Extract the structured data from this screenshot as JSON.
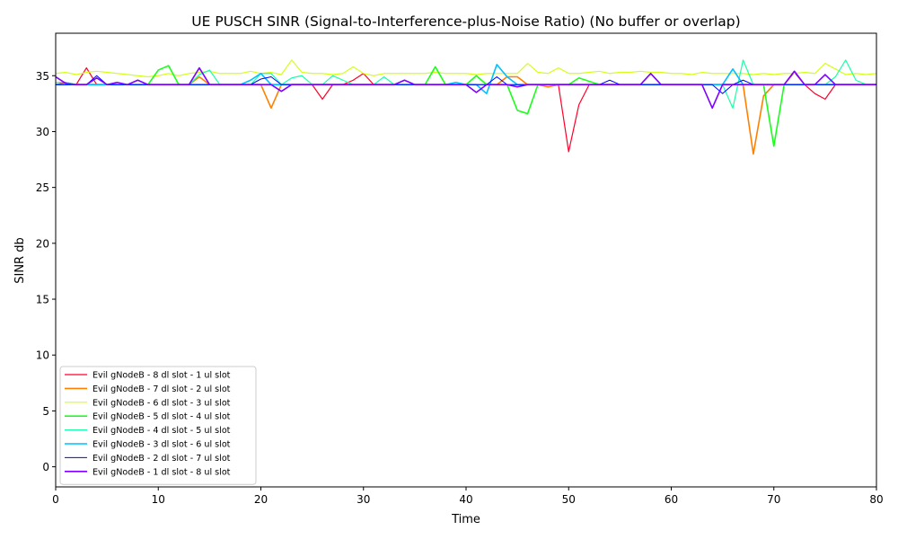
{
  "chart_data": {
    "type": "line",
    "title": "UE PUSCH SINR (Signal-to-Interference-plus-Noise Ratio) (No buffer or overlap)",
    "xlabel": "Time",
    "ylabel": "SINR db",
    "xlim": [
      0,
      80
    ],
    "ylim": [
      -1.8,
      38.8
    ],
    "xticks": [
      0,
      10,
      20,
      30,
      40,
      50,
      60,
      70,
      80
    ],
    "yticks": [
      0,
      5,
      10,
      15,
      20,
      25,
      30,
      35
    ],
    "grid": false,
    "legend_position": "lower-left",
    "x": [
      0,
      1,
      2,
      3,
      4,
      5,
      6,
      7,
      8,
      9,
      10,
      11,
      12,
      13,
      14,
      15,
      16,
      17,
      18,
      19,
      20,
      21,
      22,
      23,
      24,
      25,
      26,
      27,
      28,
      29,
      30,
      31,
      32,
      33,
      34,
      35,
      36,
      37,
      38,
      39,
      40,
      41,
      42,
      43,
      44,
      45,
      46,
      47,
      48,
      49,
      50,
      51,
      52,
      53,
      54,
      55,
      56,
      57,
      58,
      59,
      60,
      61,
      62,
      63,
      64,
      65,
      66,
      67,
      68,
      69,
      70,
      71,
      72,
      73,
      74,
      75,
      76,
      77,
      78,
      79,
      80
    ],
    "series": [
      {
        "name": "Evil gNodeB - 8 dl slot - 1 ul slot",
        "color": "#ff0029",
        "width": 1.2,
        "values": [
          34.2,
          34.4,
          34.2,
          35.7,
          34.2,
          34.2,
          34.2,
          34.2,
          34.2,
          34.2,
          34.2,
          34.2,
          34.2,
          34.2,
          34.2,
          34.2,
          34.2,
          34.2,
          34.2,
          34.2,
          34.2,
          34.2,
          34.2,
          34.2,
          34.2,
          34.2,
          32.9,
          34.2,
          34.2,
          34.6,
          35.2,
          34.2,
          34.2,
          34.2,
          34.2,
          34.2,
          34.2,
          34.2,
          34.2,
          34.2,
          34.2,
          34.2,
          34.2,
          34.2,
          34.2,
          34.2,
          34.2,
          34.2,
          34.2,
          34.2,
          28.2,
          32.4,
          34.2,
          34.2,
          34.2,
          34.2,
          34.2,
          34.2,
          34.2,
          34.2,
          34.2,
          34.2,
          34.2,
          34.2,
          34.2,
          34.2,
          34.2,
          34.2,
          34.2,
          34.2,
          34.2,
          34.2,
          35.3,
          34.2,
          33.4,
          32.9,
          34.2,
          34.2,
          34.2,
          34.2,
          34.2
        ]
      },
      {
        "name": "Evil gNodeB - 7 dl slot - 2 ul slot",
        "color": "#ff8000",
        "width": 1.6,
        "values": [
          34.2,
          34.2,
          34.2,
          34.2,
          34.2,
          34.2,
          34.2,
          34.2,
          34.2,
          34.2,
          34.2,
          34.2,
          34.2,
          34.2,
          34.9,
          34.2,
          34.2,
          34.2,
          34.2,
          34.2,
          34.2,
          32.1,
          34.2,
          34.2,
          34.2,
          34.2,
          34.2,
          34.2,
          34.2,
          34.2,
          34.2,
          34.2,
          34.2,
          34.2,
          34.2,
          34.2,
          34.2,
          34.2,
          34.2,
          34.2,
          34.2,
          34.2,
          34.2,
          34.2,
          34.9,
          34.9,
          34.2,
          34.2,
          34.0,
          34.2,
          34.2,
          34.2,
          34.2,
          34.2,
          34.2,
          34.2,
          34.2,
          34.2,
          34.2,
          34.2,
          34.2,
          34.2,
          34.2,
          34.2,
          34.2,
          34.2,
          34.2,
          34.2,
          28.0,
          33.2,
          34.2,
          34.2,
          34.2,
          34.2,
          34.2,
          34.2,
          34.2,
          34.2,
          34.2,
          34.2,
          34.2
        ]
      },
      {
        "name": "Evil gNodeB - 6 dl slot - 3 ul slot",
        "color": "#d4ff1a",
        "width": 1.2,
        "values": [
          35.2,
          35.3,
          35.1,
          35.3,
          35.4,
          35.3,
          35.2,
          35.1,
          35.0,
          34.9,
          35.0,
          35.2,
          35.0,
          35.2,
          35.3,
          35.4,
          35.2,
          35.2,
          35.2,
          35.4,
          35.2,
          35.3,
          35.1,
          36.4,
          35.3,
          35.2,
          35.2,
          35.1,
          35.2,
          35.8,
          35.2,
          35.0,
          35.2,
          35.2,
          35.2,
          35.2,
          35.2,
          35.3,
          35.2,
          35.2,
          35.2,
          35.1,
          35.2,
          35.2,
          35.2,
          35.2,
          36.1,
          35.3,
          35.2,
          35.7,
          35.2,
          35.2,
          35.3,
          35.4,
          35.2,
          35.3,
          35.3,
          35.4,
          35.3,
          35.3,
          35.2,
          35.2,
          35.1,
          35.3,
          35.2,
          35.2,
          35.2,
          35.2,
          35.1,
          35.2,
          35.1,
          35.2,
          35.2,
          35.3,
          35.2,
          36.1,
          35.6,
          35.1,
          35.2,
          35.1,
          35.2
        ]
      },
      {
        "name": "Evil gNodeB - 5 dl slot - 4 ul slot",
        "color": "#1aff1a",
        "width": 1.6,
        "values": [
          34.2,
          34.2,
          34.2,
          34.2,
          34.2,
          34.2,
          34.2,
          34.2,
          34.2,
          34.2,
          35.5,
          35.9,
          34.2,
          34.2,
          34.2,
          34.2,
          34.2,
          34.2,
          34.2,
          34.2,
          34.2,
          34.2,
          34.2,
          34.2,
          34.2,
          34.2,
          34.2,
          34.2,
          34.2,
          34.2,
          34.2,
          34.2,
          34.2,
          34.2,
          34.2,
          34.2,
          34.2,
          35.8,
          34.2,
          34.2,
          34.2,
          35.0,
          34.2,
          34.2,
          34.2,
          31.9,
          31.6,
          34.2,
          34.2,
          34.2,
          34.2,
          34.8,
          34.5,
          34.2,
          34.2,
          34.2,
          34.2,
          34.2,
          34.2,
          34.2,
          34.2,
          34.2,
          34.2,
          34.2,
          34.2,
          34.2,
          34.2,
          34.2,
          34.2,
          34.2,
          28.7,
          34.2,
          34.2,
          34.2,
          34.2,
          34.2,
          34.2,
          34.2,
          34.2,
          34.2,
          34.2
        ]
      },
      {
        "name": "Evil gNodeB - 4 dl slot - 5 ul slot",
        "color": "#1affa6",
        "width": 1.2,
        "values": [
          34.4,
          34.4,
          34.2,
          34.2,
          34.8,
          34.2,
          34.2,
          34.2,
          34.2,
          34.2,
          34.2,
          34.2,
          34.2,
          34.2,
          35.1,
          35.5,
          34.2,
          34.2,
          34.2,
          34.2,
          35.2,
          35.2,
          34.2,
          34.8,
          35.0,
          34.2,
          34.2,
          35.0,
          34.6,
          34.2,
          34.2,
          34.2,
          34.9,
          34.2,
          34.2,
          34.2,
          34.2,
          34.2,
          34.2,
          34.2,
          34.2,
          34.2,
          34.2,
          34.2,
          34.2,
          34.2,
          34.2,
          34.2,
          34.2,
          34.2,
          34.2,
          34.2,
          34.2,
          34.2,
          34.2,
          34.2,
          34.2,
          34.2,
          34.2,
          34.2,
          34.2,
          34.2,
          34.2,
          34.2,
          34.2,
          34.2,
          32.1,
          36.4,
          34.2,
          34.2,
          34.2,
          34.2,
          34.2,
          34.2,
          34.2,
          34.2,
          34.9,
          36.4,
          34.6,
          34.2,
          34.2
        ]
      },
      {
        "name": "Evil gNodeB - 3 dl slot - 6 ul slot",
        "color": "#00bfff",
        "width": 1.6,
        "values": [
          34.2,
          34.2,
          34.2,
          34.2,
          34.2,
          34.2,
          34.2,
          34.2,
          34.2,
          34.2,
          34.2,
          34.2,
          34.2,
          34.2,
          34.2,
          34.2,
          34.2,
          34.2,
          34.2,
          34.6,
          35.2,
          34.2,
          34.2,
          34.2,
          34.2,
          34.2,
          34.2,
          34.2,
          34.2,
          34.2,
          34.2,
          34.2,
          34.2,
          34.2,
          34.2,
          34.2,
          34.2,
          34.2,
          34.2,
          34.4,
          34.2,
          34.2,
          33.4,
          36.0,
          34.9,
          34.2,
          34.2,
          34.2,
          34.2,
          34.2,
          34.2,
          34.2,
          34.2,
          34.2,
          34.2,
          34.2,
          34.2,
          34.2,
          34.2,
          34.2,
          34.2,
          34.2,
          34.2,
          34.2,
          34.2,
          34.2,
          35.6,
          34.2,
          34.2,
          34.2,
          34.2,
          34.2,
          34.2,
          34.2,
          34.2,
          34.2,
          34.2,
          34.2,
          34.2,
          34.2,
          34.2
        ]
      },
      {
        "name": "Evil gNodeB - 2 dl slot - 7 ul slot",
        "color": "#0000ff",
        "width": 1.0,
        "values": [
          34.2,
          34.2,
          34.2,
          34.2,
          35.0,
          34.2,
          34.2,
          34.2,
          34.2,
          34.2,
          34.2,
          34.2,
          34.2,
          34.2,
          34.2,
          34.2,
          34.2,
          34.2,
          34.2,
          34.2,
          34.7,
          34.9,
          34.2,
          34.2,
          34.2,
          34.2,
          34.2,
          34.2,
          34.2,
          34.2,
          34.2,
          34.2,
          34.2,
          34.2,
          34.2,
          34.2,
          34.2,
          34.2,
          34.2,
          34.2,
          34.2,
          34.2,
          34.2,
          34.9,
          34.2,
          34.2,
          34.2,
          34.2,
          34.2,
          34.2,
          34.2,
          34.2,
          34.2,
          34.2,
          34.6,
          34.2,
          34.2,
          34.2,
          34.2,
          34.2,
          34.2,
          34.2,
          34.2,
          34.2,
          34.2,
          33.4,
          34.2,
          34.6,
          34.2,
          34.2,
          34.2,
          34.2,
          34.2,
          34.2,
          34.2,
          34.2,
          34.2,
          34.2,
          34.2,
          34.2,
          34.2
        ]
      },
      {
        "name": "Evil gNodeB - 1 dl slot - 8 ul slot",
        "color": "#8000ff",
        "width": 1.6,
        "values": [
          34.9,
          34.3,
          34.2,
          34.2,
          34.8,
          34.2,
          34.4,
          34.2,
          34.6,
          34.2,
          34.2,
          34.2,
          34.2,
          34.2,
          35.7,
          34.2,
          34.2,
          34.2,
          34.2,
          34.2,
          34.2,
          34.2,
          33.6,
          34.2,
          34.2,
          34.2,
          34.2,
          34.2,
          34.2,
          34.2,
          34.2,
          34.2,
          34.2,
          34.2,
          34.6,
          34.2,
          34.2,
          34.2,
          34.2,
          34.2,
          34.2,
          33.5,
          34.2,
          34.2,
          34.2,
          34.0,
          34.2,
          34.2,
          34.2,
          34.2,
          34.2,
          34.2,
          34.2,
          34.2,
          34.2,
          34.2,
          34.2,
          34.2,
          35.2,
          34.2,
          34.2,
          34.2,
          34.2,
          34.2,
          32.1,
          34.2,
          34.2,
          34.2,
          34.2,
          34.2,
          34.2,
          34.2,
          35.4,
          34.2,
          34.2,
          35.1,
          34.2,
          34.2,
          34.2,
          34.2,
          34.2
        ]
      }
    ]
  }
}
